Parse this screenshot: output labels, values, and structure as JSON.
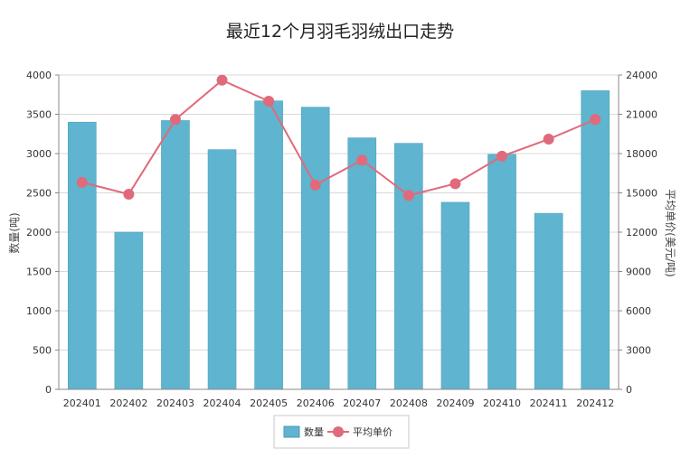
{
  "chart_data": {
    "type": "bar",
    "title": "最近12个月羽毛羽绒出口走势",
    "categories": [
      "202401",
      "202402",
      "202403",
      "202404",
      "202405",
      "202406",
      "202407",
      "202408",
      "202409",
      "202410",
      "202411",
      "202412"
    ],
    "series": [
      {
        "name": "数量",
        "type": "bar",
        "axis": "left",
        "color": "#5fb4cf",
        "values": [
          3400,
          2000,
          3420,
          3050,
          3670,
          3590,
          3200,
          3130,
          2380,
          2990,
          2240,
          3800
        ]
      },
      {
        "name": "平均单价",
        "type": "line",
        "axis": "right",
        "color": "#e06a7b",
        "values": [
          15800,
          14900,
          20600,
          23600,
          22000,
          15600,
          17500,
          14800,
          15700,
          17800,
          19100,
          20600
        ]
      }
    ],
    "ylabel": "数量(吨)",
    "ylim": [
      0,
      4000
    ],
    "yticks": [
      0,
      500,
      1000,
      1500,
      2000,
      2500,
      3000,
      3500,
      4000
    ],
    "y2label": "平均单价(美元/吨)",
    "y2lim": [
      0,
      24000
    ],
    "y2ticks": [
      0,
      3000,
      6000,
      9000,
      12000,
      15000,
      18000,
      21000,
      24000
    ],
    "grid": true,
    "legend": "bottom"
  }
}
